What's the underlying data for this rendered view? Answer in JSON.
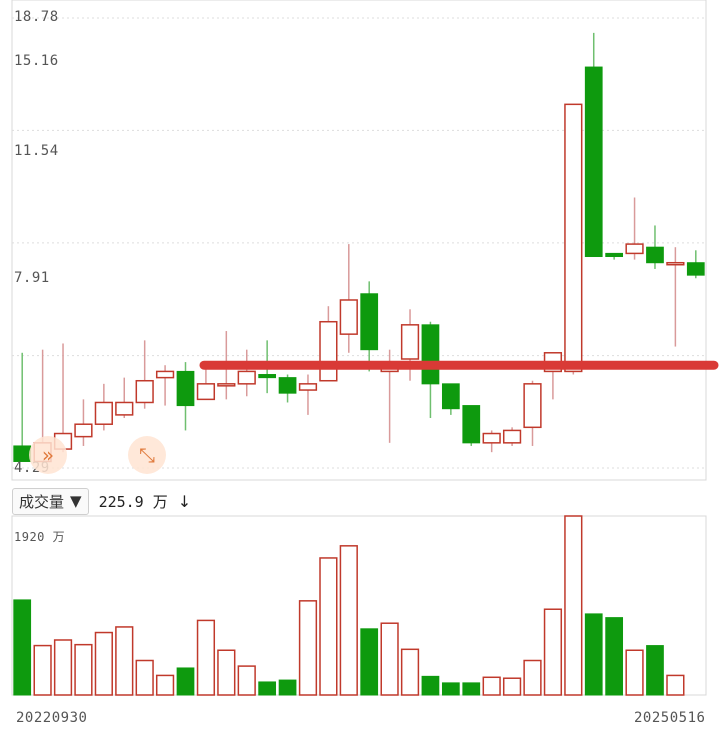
{
  "chart_data": [
    {
      "type": "candlestick",
      "y_ticks": [
        "18.78",
        "15.16",
        "11.54",
        "7.91",
        "4.29"
      ],
      "ylim": [
        4.29,
        18.78
      ],
      "grid": true,
      "annotation": "red horizontal line at ~7.6",
      "hline": 7.6,
      "candles": [
        {
          "o": 5.0,
          "c": 4.5,
          "h": 8.0,
          "l": 4.5
        },
        {
          "o": 4.5,
          "c": 5.1,
          "h": 8.1,
          "l": 4.4
        },
        {
          "o": 4.9,
          "c": 5.4,
          "h": 8.3,
          "l": 4.8
        },
        {
          "o": 5.3,
          "c": 5.7,
          "h": 6.5,
          "l": 5.0
        },
        {
          "o": 5.7,
          "c": 6.4,
          "h": 7.0,
          "l": 5.5
        },
        {
          "o": 6.0,
          "c": 6.4,
          "h": 7.2,
          "l": 5.9
        },
        {
          "o": 6.4,
          "c": 7.1,
          "h": 8.4,
          "l": 6.2
        },
        {
          "o": 7.2,
          "c": 7.4,
          "h": 7.6,
          "l": 6.3
        },
        {
          "o": 7.4,
          "c": 6.3,
          "h": 7.7,
          "l": 5.5
        },
        {
          "o": 6.5,
          "c": 7.0,
          "h": 7.7,
          "l": 6.5
        },
        {
          "o": 7.0,
          "c": 7.0,
          "h": 8.7,
          "l": 6.5
        },
        {
          "o": 7.0,
          "c": 7.4,
          "h": 8.1,
          "l": 6.6
        },
        {
          "o": 7.3,
          "c": 7.2,
          "h": 8.4,
          "l": 6.7
        },
        {
          "o": 7.2,
          "c": 6.7,
          "h": 7.3,
          "l": 6.4
        },
        {
          "o": 6.8,
          "c": 7.0,
          "h": 7.3,
          "l": 6.0
        },
        {
          "o": 7.1,
          "c": 9.0,
          "h": 9.5,
          "l": 7.1
        },
        {
          "o": 8.6,
          "c": 9.7,
          "h": 11.5,
          "l": 8.0
        },
        {
          "o": 9.9,
          "c": 8.1,
          "h": 10.3,
          "l": 7.4
        },
        {
          "o": 7.4,
          "c": 7.6,
          "h": 8.1,
          "l": 5.1
        },
        {
          "o": 7.8,
          "c": 8.9,
          "h": 9.4,
          "l": 7.1
        },
        {
          "o": 8.9,
          "c": 7.0,
          "h": 9.0,
          "l": 5.9
        },
        {
          "o": 7.0,
          "c": 6.2,
          "h": 7.0,
          "l": 6.0
        },
        {
          "o": 6.3,
          "c": 5.1,
          "h": 6.3,
          "l": 5.0
        },
        {
          "o": 5.1,
          "c": 5.4,
          "h": 5.5,
          "l": 4.8
        },
        {
          "o": 5.1,
          "c": 5.5,
          "h": 5.6,
          "l": 5.0
        },
        {
          "o": 5.6,
          "c": 7.0,
          "h": 7.1,
          "l": 5.0
        },
        {
          "o": 7.4,
          "c": 8.0,
          "h": 8.0,
          "l": 6.5
        },
        {
          "o": 7.4,
          "c": 16.0,
          "h": 16.0,
          "l": 7.3
        },
        {
          "o": 17.2,
          "c": 11.1,
          "h": 18.3,
          "l": 11.1
        },
        {
          "o": 11.2,
          "c": 11.1,
          "h": 11.2,
          "l": 11.0
        },
        {
          "o": 11.2,
          "c": 11.5,
          "h": 13.0,
          "l": 11.0
        },
        {
          "o": 11.4,
          "c": 10.9,
          "h": 12.1,
          "l": 10.7
        },
        {
          "o": 10.9,
          "c": 10.9,
          "h": 11.4,
          "l": 8.2
        },
        {
          "o": 10.9,
          "c": 10.5,
          "h": 11.3,
          "l": 10.4
        }
      ]
    },
    {
      "type": "bar",
      "label": "成交量",
      "value_text": "225.9 万",
      "max_label": "1920 万",
      "ymax": 1920,
      "x_start_label": "20220930",
      "x_end_label": "20250516",
      "values": [
        1020,
        530,
        590,
        540,
        670,
        730,
        370,
        210,
        290,
        800,
        480,
        310,
        140,
        160,
        1010,
        1470,
        1600,
        710,
        770,
        490,
        200,
        130,
        130,
        190,
        180,
        370,
        920,
        1920,
        870,
        830,
        480,
        530,
        210,
        0
      ]
    }
  ],
  "ui": {
    "selector_label": "成交量",
    "selector_caret": "▼",
    "volume_value": "225.9 万",
    "down_arrow": "↓",
    "fast_forward_glyph": "»",
    "expand_glyph": "⤡"
  },
  "colors": {
    "up": "#c0392b",
    "down": "#0e9a0e",
    "wick_up": "#d99a9a",
    "wick_down": "#6fbf6f",
    "hline": "#d93a36",
    "grid": "#dddddd",
    "border": "#d8d8d8"
  }
}
